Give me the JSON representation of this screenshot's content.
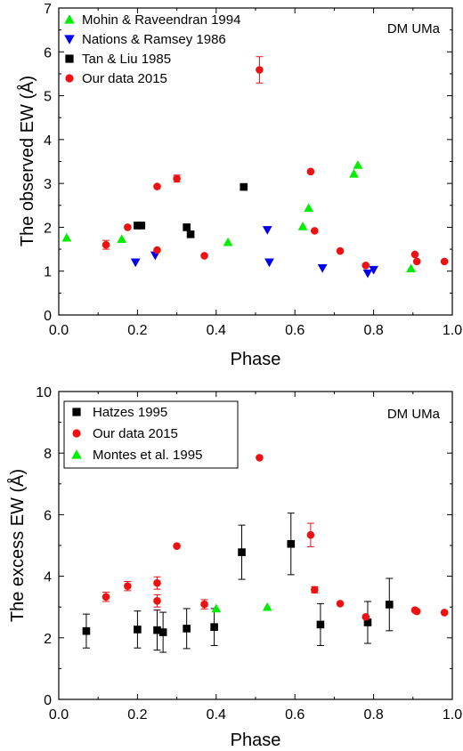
{
  "chart_data": [
    {
      "type": "scatter",
      "title": "",
      "xlabel": "Phase",
      "ylabel": "The observed EW (Å)",
      "xlim": [
        0.0,
        1.0
      ],
      "ylim": [
        0,
        7
      ],
      "xticks": [
        "0.0",
        "0.2",
        "0.4",
        "0.6",
        "0.8",
        "1.0"
      ],
      "yticks": [
        "0",
        "1",
        "2",
        "3",
        "4",
        "5",
        "6",
        "7"
      ],
      "grid": false,
      "legend_position": "top-left",
      "annotation": "DM UMa",
      "series": [
        {
          "name": "Mohin & Raveendran  1994",
          "marker": "triangle-up",
          "color": "#00ee00",
          "points": [
            {
              "x": 0.02,
              "y": 1.76
            },
            {
              "x": 0.16,
              "y": 1.73
            },
            {
              "x": 0.43,
              "y": 1.66
            },
            {
              "x": 0.62,
              "y": 2.02
            },
            {
              "x": 0.635,
              "y": 2.44
            },
            {
              "x": 0.75,
              "y": 3.22
            },
            {
              "x": 0.76,
              "y": 3.42
            },
            {
              "x": 0.895,
              "y": 1.06
            }
          ]
        },
        {
          "name": "Nations & Ramsey  1986",
          "marker": "triangle-down",
          "color": "#0000ee",
          "points": [
            {
              "x": 0.195,
              "y": 1.2
            },
            {
              "x": 0.245,
              "y": 1.36
            },
            {
              "x": 0.53,
              "y": 1.94
            },
            {
              "x": 0.535,
              "y": 1.2
            },
            {
              "x": 0.67,
              "y": 1.07
            },
            {
              "x": 0.785,
              "y": 0.95
            },
            {
              "x": 0.8,
              "y": 1.03
            }
          ]
        },
        {
          "name": "Tan & Liu 1985",
          "marker": "square",
          "color": "#000000",
          "points": [
            {
              "x": 0.2,
              "y": 2.04
            },
            {
              "x": 0.21,
              "y": 2.04
            },
            {
              "x": 0.325,
              "y": 2.0
            },
            {
              "x": 0.335,
              "y": 1.84
            },
            {
              "x": 0.47,
              "y": 2.92
            }
          ]
        },
        {
          "name": "Our data 2015",
          "marker": "circle",
          "color": "#ee1111",
          "points": [
            {
              "x": 0.12,
              "y": 1.6,
              "err": 0.1
            },
            {
              "x": 0.175,
              "y": 2.0
            },
            {
              "x": 0.25,
              "y": 2.93
            },
            {
              "x": 0.25,
              "y": 1.48
            },
            {
              "x": 0.3,
              "y": 3.11,
              "err": 0.08
            },
            {
              "x": 0.37,
              "y": 1.35
            },
            {
              "x": 0.51,
              "y": 5.59,
              "err": 0.3
            },
            {
              "x": 0.64,
              "y": 3.27
            },
            {
              "x": 0.65,
              "y": 1.92
            },
            {
              "x": 0.715,
              "y": 1.46
            },
            {
              "x": 0.78,
              "y": 1.13
            },
            {
              "x": 0.905,
              "y": 1.38
            },
            {
              "x": 0.91,
              "y": 1.22
            },
            {
              "x": 0.98,
              "y": 1.22
            }
          ]
        }
      ]
    },
    {
      "type": "scatter",
      "title": "",
      "xlabel": "Phase",
      "ylabel": "The excess EW (Å)",
      "xlim": [
        0.0,
        1.0
      ],
      "ylim": [
        0,
        10
      ],
      "xticks": [
        "0.0",
        "0.2",
        "0.4",
        "0.6",
        "0.8",
        "1.0"
      ],
      "yticks": [
        "0",
        "2",
        "4",
        "6",
        "8",
        "10"
      ],
      "grid": false,
      "legend_position": "top-left",
      "annotation": "DM UMa",
      "series": [
        {
          "name": "Hatzes 1995",
          "marker": "square",
          "color": "#000000",
          "points": [
            {
              "x": 0.07,
              "y": 2.22,
              "err": 0.55
            },
            {
              "x": 0.2,
              "y": 2.27,
              "err": 0.6
            },
            {
              "x": 0.25,
              "y": 2.25,
              "err": 0.65
            },
            {
              "x": 0.265,
              "y": 2.18,
              "err": 0.65
            },
            {
              "x": 0.325,
              "y": 2.3,
              "err": 0.65
            },
            {
              "x": 0.395,
              "y": 2.35,
              "err": 0.6
            },
            {
              "x": 0.465,
              "y": 4.78,
              "err": 0.88
            },
            {
              "x": 0.59,
              "y": 5.05,
              "err": 1.0
            },
            {
              "x": 0.665,
              "y": 2.43,
              "err": 0.68
            },
            {
              "x": 0.785,
              "y": 2.5,
              "err": 0.68
            },
            {
              "x": 0.84,
              "y": 3.08,
              "err": 0.85
            }
          ]
        },
        {
          "name": "Our data 2015",
          "marker": "circle",
          "color": "#ee1111",
          "points": [
            {
              "x": 0.12,
              "y": 3.33,
              "err": 0.15
            },
            {
              "x": 0.175,
              "y": 3.68,
              "err": 0.15
            },
            {
              "x": 0.25,
              "y": 3.78,
              "err": 0.2
            },
            {
              "x": 0.25,
              "y": 3.2,
              "err": 0.2
            },
            {
              "x": 0.3,
              "y": 4.98
            },
            {
              "x": 0.37,
              "y": 3.09,
              "err": 0.15
            },
            {
              "x": 0.51,
              "y": 7.85
            },
            {
              "x": 0.64,
              "y": 5.34,
              "err": 0.38
            },
            {
              "x": 0.65,
              "y": 3.56,
              "err": 0.1
            },
            {
              "x": 0.715,
              "y": 3.11
            },
            {
              "x": 0.78,
              "y": 2.68
            },
            {
              "x": 0.905,
              "y": 2.9
            },
            {
              "x": 0.91,
              "y": 2.86
            },
            {
              "x": 0.98,
              "y": 2.82
            }
          ]
        },
        {
          "name": "Montes et al. 1995",
          "marker": "triangle-up",
          "color": "#00ee00",
          "points": [
            {
              "x": 0.4,
              "y": 2.95
            },
            {
              "x": 0.53,
              "y": 3.0
            }
          ]
        }
      ]
    }
  ]
}
